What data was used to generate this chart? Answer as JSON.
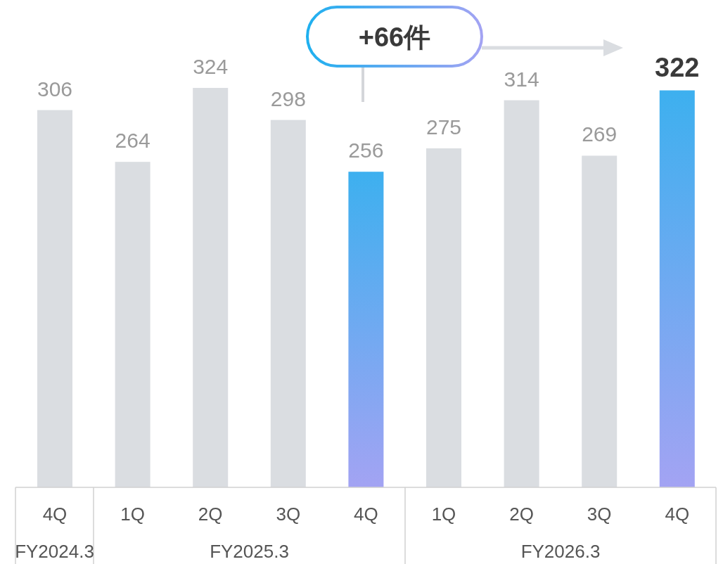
{
  "chart_data": {
    "type": "bar",
    "categories": [
      "4Q",
      "1Q",
      "2Q",
      "3Q",
      "4Q",
      "1Q",
      "2Q",
      "3Q",
      "4Q"
    ],
    "values": [
      306,
      264,
      324,
      298,
      256,
      275,
      314,
      269,
      322
    ],
    "colors": [
      "#dadde1",
      "#dadde1",
      "#dadde1",
      "#dadde1",
      "#3db0ef",
      "#dadde1",
      "#dadde1",
      "#dadde1",
      "#3db0ef"
    ],
    "data_labels": true,
    "annotations": [
      "+66件",
      "FY2024.3",
      "FY2025.3",
      "FY2026.3"
    ]
  }
}
